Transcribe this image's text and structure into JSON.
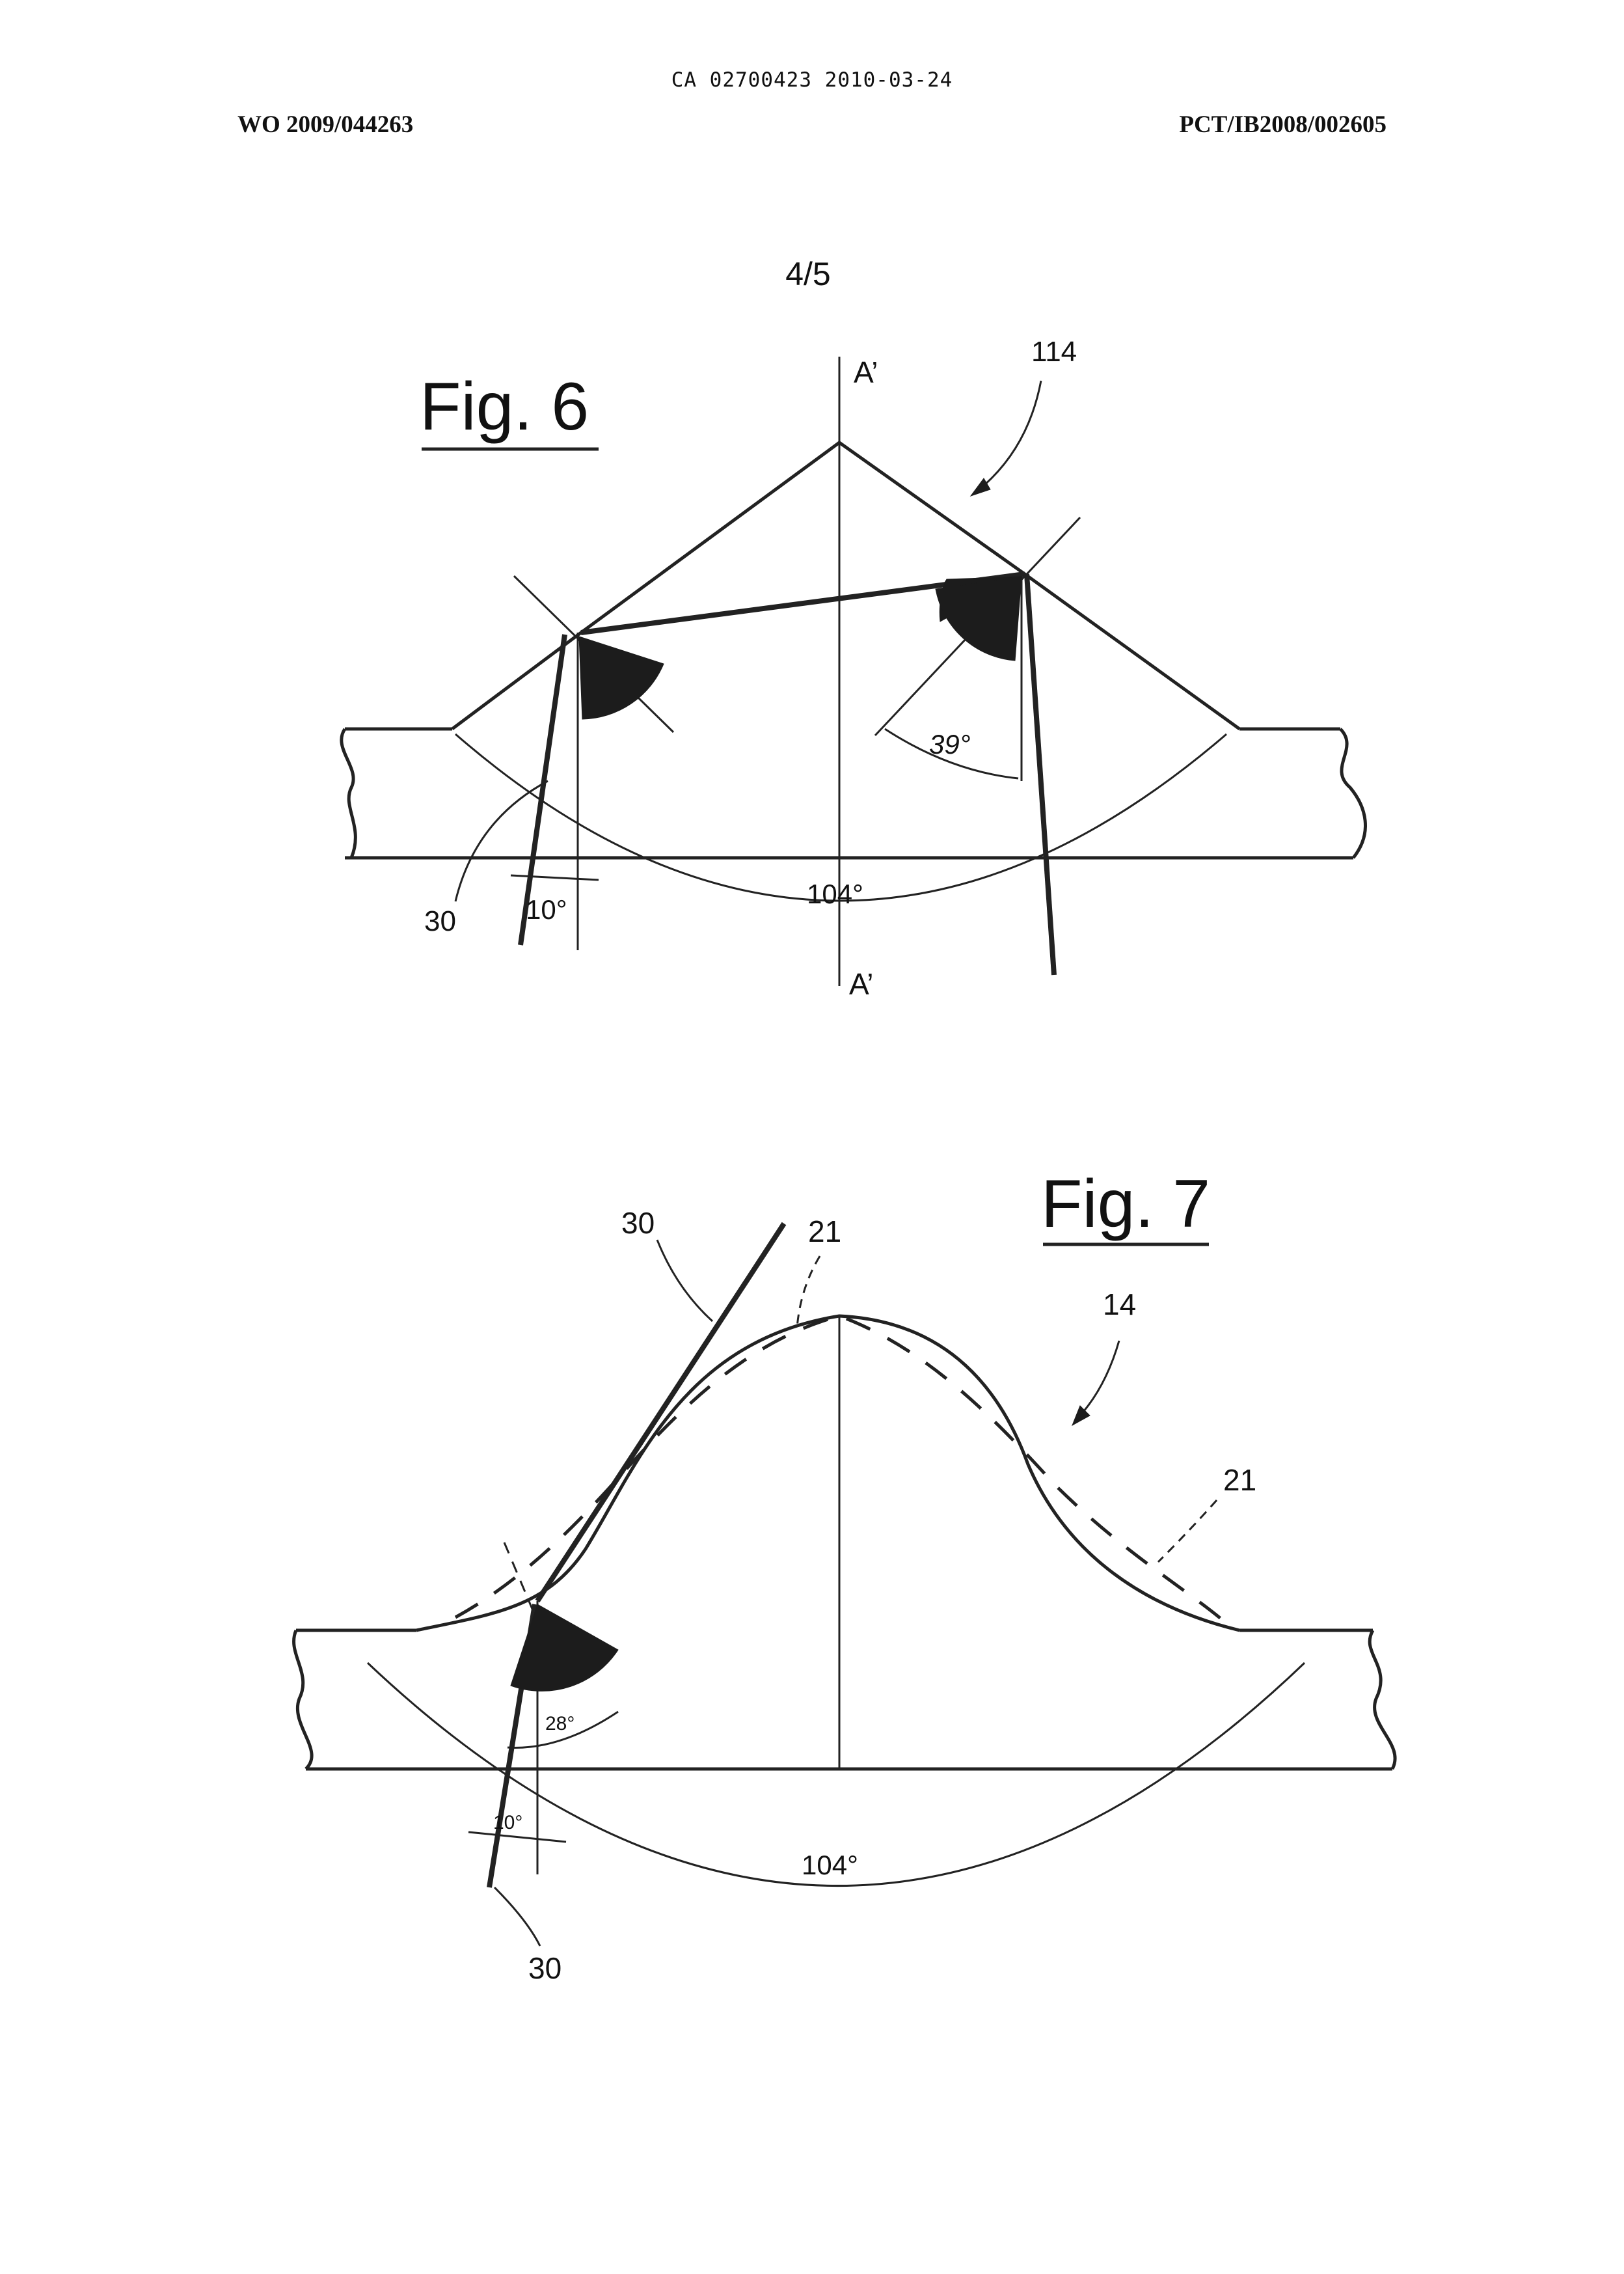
{
  "header": {
    "doc_id": "CA 02700423 2010-03-24",
    "left_ref": "WO 2009/044263",
    "right_ref": "PCT/IB2008/002605"
  },
  "sheet": "4/5",
  "fig6": {
    "title": "Fig. 6",
    "ref_114": "114",
    "axis_top": "A’",
    "axis_bottom": "A’",
    "angle_39": "39°",
    "angle_104": "104°",
    "angle_10": "10°",
    "ref_30": "30"
  },
  "fig7": {
    "title": "Fig. 7",
    "ref_30_top": "30",
    "ref_21_top": "21",
    "ref_14": "14",
    "ref_21_right": "21",
    "angle_28": "28°",
    "angle_10": "10°",
    "angle_104": "104°",
    "ref_30_bottom": "30"
  }
}
